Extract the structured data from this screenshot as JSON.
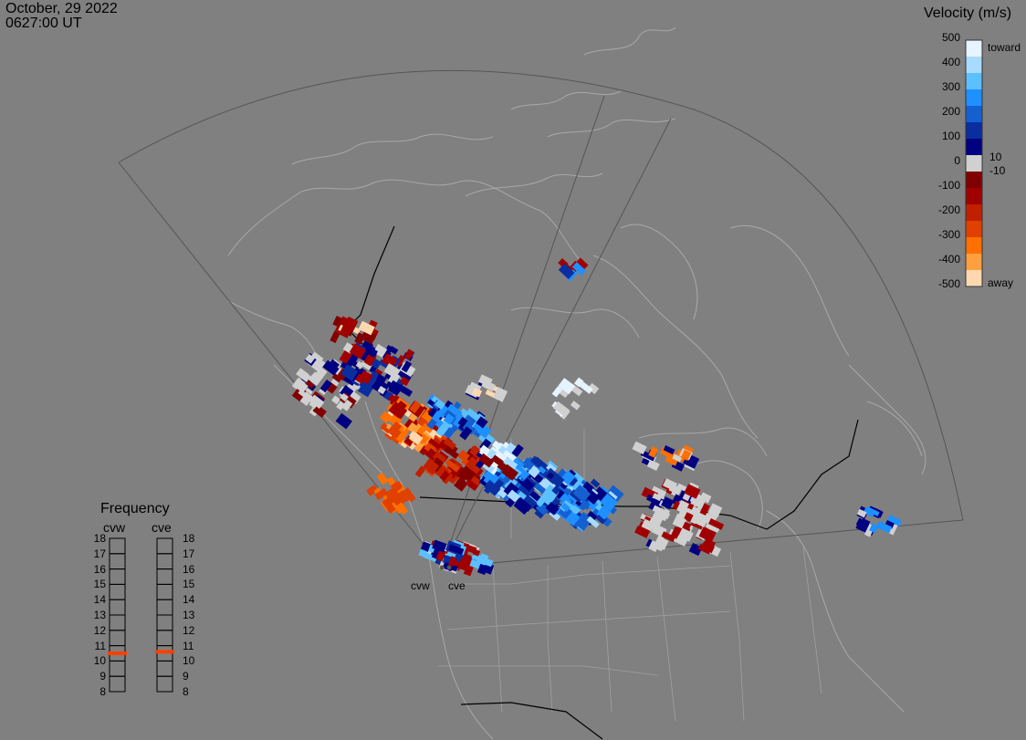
{
  "header": {
    "date": "October, 29 2022",
    "time": "0627:00 UT"
  },
  "colorbar": {
    "title": "Velocity (m/s)",
    "ticks": [
      "500",
      "400",
      "300",
      "200",
      "100",
      "0",
      "-100",
      "-200",
      "-300",
      "-400",
      "-500"
    ],
    "inner_pos": "10",
    "inner_neg": "-10",
    "toward_label": "toward",
    "away_label": "away",
    "colors": [
      "#e6f4ff",
      "#a8dbff",
      "#5cc0ff",
      "#1e90ff",
      "#1460d0",
      "#0a2ea0",
      "#000080",
      "#d0d0d0",
      "#800000",
      "#a00000",
      "#c02000",
      "#e04000",
      "#ff7000",
      "#ffa040",
      "#ffd8b0"
    ]
  },
  "frequency": {
    "title": "Frequency",
    "radar_west": "cvw",
    "radar_east": "cve",
    "levels": [
      "18",
      "17",
      "16",
      "15",
      "14",
      "13",
      "12",
      "11",
      "10",
      "9",
      "8"
    ],
    "cvw_freq": 10.5,
    "cve_freq": 10.6,
    "marker_color": "#ff4000"
  },
  "sites": {
    "west": "cvw",
    "east": "cve"
  },
  "colors": {
    "background": "#808080",
    "land_outline": "#a8a8a8",
    "fov": "#555555",
    "border": "#000000"
  }
}
